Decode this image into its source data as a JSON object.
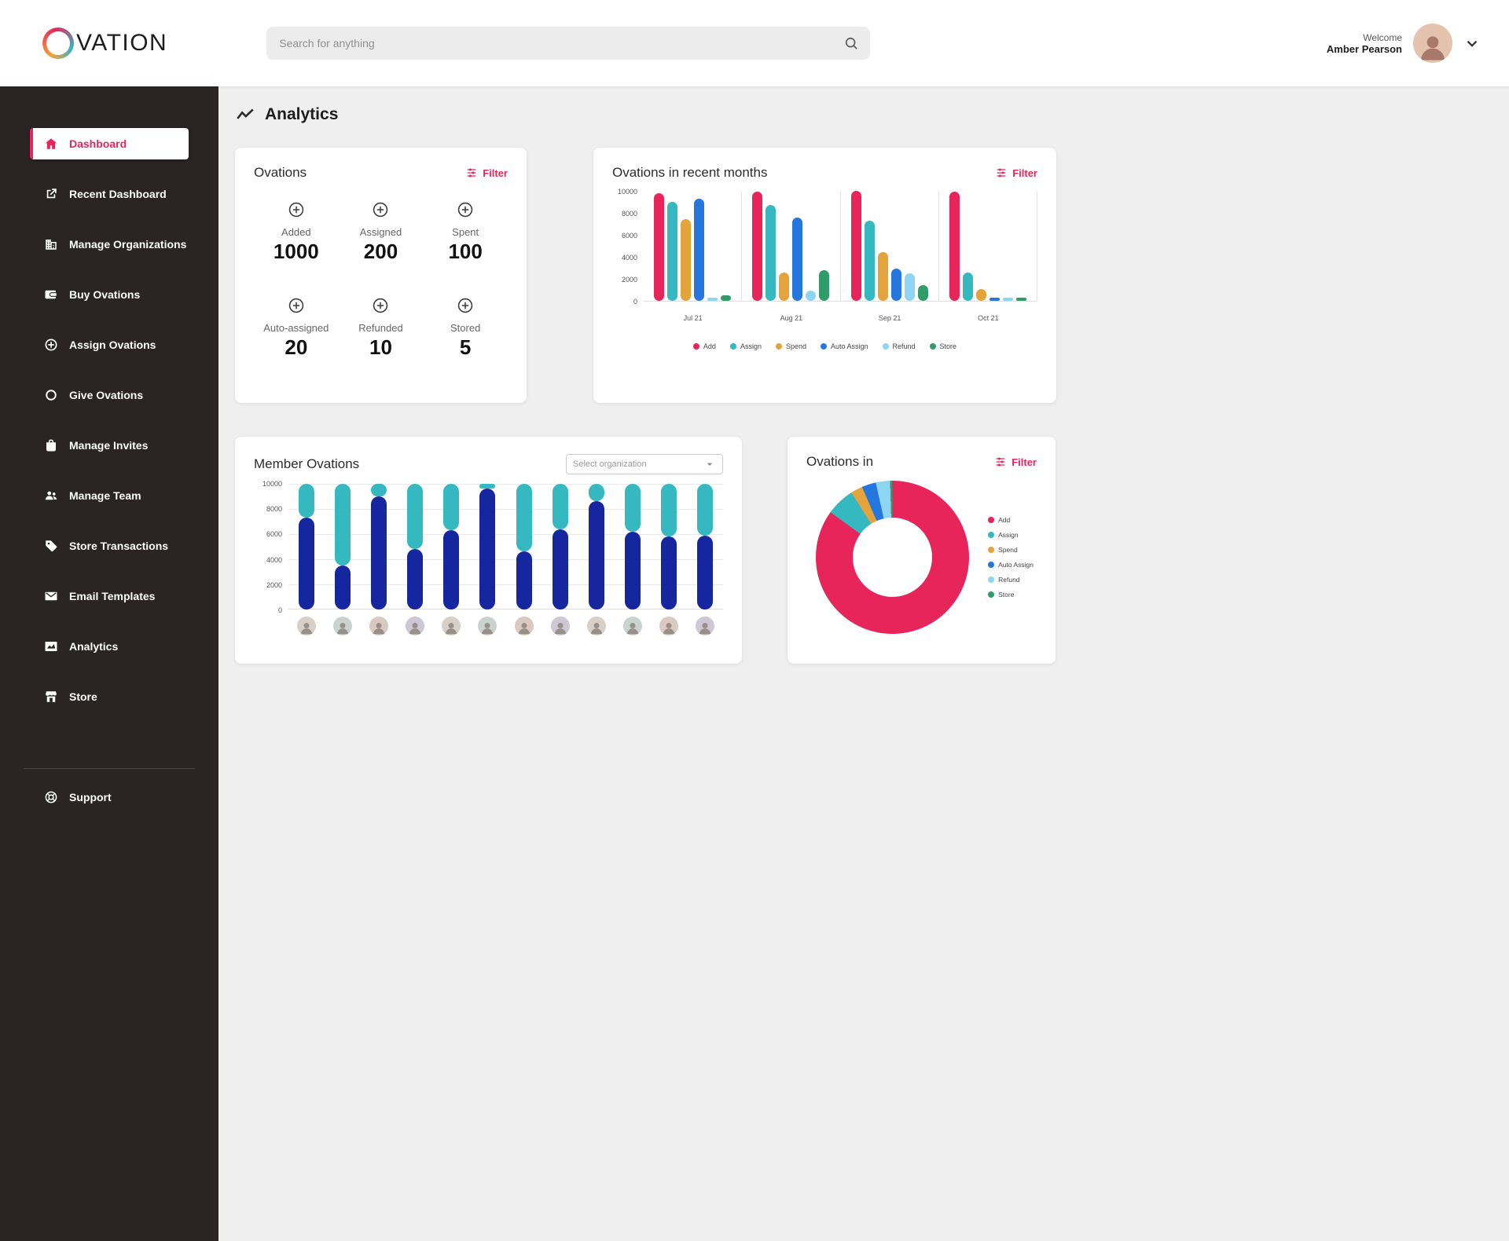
{
  "colors": {
    "accent": "#e8255a",
    "sidebar_bg": "#2b2424",
    "page_bg": "#f0efef",
    "add": "#e8255a",
    "assign": "#35b8bf",
    "spend": "#e5a33c",
    "auto_assign": "#2577dd",
    "refund": "#8ed4f3",
    "store": "#2f9c6a",
    "member_bar_bottom": "#16269f"
  },
  "header": {
    "logo_text": "VATION",
    "search_placeholder": "Search for anything",
    "user": {
      "welcome": "Welcome",
      "name": "Amber Pearson"
    }
  },
  "sidebar": {
    "items": [
      {
        "label": "Dashboard",
        "icon": "home",
        "active": true
      },
      {
        "label": "Recent Dashboard",
        "icon": "external"
      },
      {
        "label": "Manage Organizations",
        "icon": "org"
      },
      {
        "label": "Buy Ovations",
        "icon": "wallet"
      },
      {
        "label": "Assign Ovations",
        "icon": "assign"
      },
      {
        "label": "Give Ovations",
        "icon": "give"
      },
      {
        "label": "Manage Invites",
        "icon": "invite"
      },
      {
        "label": "Manage Team",
        "icon": "team"
      },
      {
        "label": "Store Transactions",
        "icon": "tag"
      },
      {
        "label": "Email Templates",
        "icon": "email"
      },
      {
        "label": "Analytics",
        "icon": "analytics"
      },
      {
        "label": "Store",
        "icon": "store"
      }
    ],
    "support": {
      "label": "Support",
      "icon": "support"
    }
  },
  "page": {
    "title": "Analytics"
  },
  "cards": {
    "ovations": {
      "title": "Ovations",
      "filter_label": "Filter",
      "stats": [
        {
          "label": "Added",
          "value": "1000"
        },
        {
          "label": "Assigned",
          "value": "200"
        },
        {
          "label": "Spent",
          "value": "100"
        },
        {
          "label": "Auto-assigned",
          "value": "20"
        },
        {
          "label": "Refunded",
          "value": "10"
        },
        {
          "label": "Stored",
          "value": "5"
        }
      ]
    },
    "recent_months": {
      "title": "Ovations in recent months",
      "filter_label": "Filter"
    },
    "member_ovations": {
      "title": "Member Ovations",
      "select_placeholder": "Select organization",
      "member_count": 12
    },
    "ovations_in": {
      "title": "Ovations in",
      "filter_label": "Filter"
    }
  },
  "chart_data": [
    {
      "id": "recent_months",
      "type": "bar",
      "title": "Ovations in recent months",
      "categories": [
        "Jul 21",
        "Aug 21",
        "Sep 21",
        "Oct 21"
      ],
      "series": [
        {
          "name": "Add",
          "color": "#e8255a",
          "values": [
            9800,
            9900,
            10000,
            9900
          ]
        },
        {
          "name": "Assign",
          "color": "#35b8bf",
          "values": [
            9000,
            8700,
            7300,
            2600
          ]
        },
        {
          "name": "Spend",
          "color": "#e5a33c",
          "values": [
            7400,
            2600,
            4400,
            1100
          ]
        },
        {
          "name": "Auto Assign",
          "color": "#2577dd",
          "values": [
            9300,
            7600,
            2900,
            300
          ]
        },
        {
          "name": "Refund",
          "color": "#8ed4f3",
          "values": [
            150,
            900,
            2500,
            150
          ]
        },
        {
          "name": "Store",
          "color": "#2f9c6a",
          "values": [
            500,
            2800,
            1400,
            250
          ]
        }
      ],
      "ylim": [
        0,
        10000
      ],
      "yticks": [
        0,
        2000,
        4000,
        6000,
        8000,
        10000
      ],
      "legend_position": "bottom",
      "grid": "vertical-group-separators"
    },
    {
      "id": "member_ovations",
      "type": "bar",
      "stacked": true,
      "title": "Member Ovations",
      "x_labels": "12 unnamed member avatars",
      "series": [
        {
          "name": "dark-blue-bottom",
          "color": "#16269f",
          "values": [
            7300,
            3500,
            9000,
            4800,
            6300,
            9600,
            4600,
            6400,
            8600,
            6200,
            5800,
            5900
          ]
        },
        {
          "name": "teal-top",
          "color": "#35b8bf",
          "values": [
            2700,
            6500,
            1000,
            5200,
            3700,
            400,
            5400,
            3600,
            1400,
            3800,
            4200,
            4100
          ]
        }
      ],
      "ylim": [
        0,
        10000
      ],
      "yticks": [
        0,
        2000,
        4000,
        6000,
        8000,
        10000
      ],
      "grid": "horizontal"
    },
    {
      "id": "ovations_in",
      "type": "pie",
      "donut": true,
      "title": "Ovations in",
      "values_unit": "percent (estimated from arc angles)",
      "legend_position": "right",
      "series": [
        {
          "name": "Add",
          "color": "#e8255a",
          "value": 85
        },
        {
          "name": "Assign",
          "color": "#35b8bf",
          "value": 6
        },
        {
          "name": "Spend",
          "color": "#e5a33c",
          "value": 2.5
        },
        {
          "name": "Auto Assign",
          "color": "#2577dd",
          "value": 3
        },
        {
          "name": "Refund",
          "color": "#8ed4f3",
          "value": 3
        },
        {
          "name": "Store",
          "color": "#2f9c6a",
          "value": 0.5
        }
      ]
    }
  ]
}
